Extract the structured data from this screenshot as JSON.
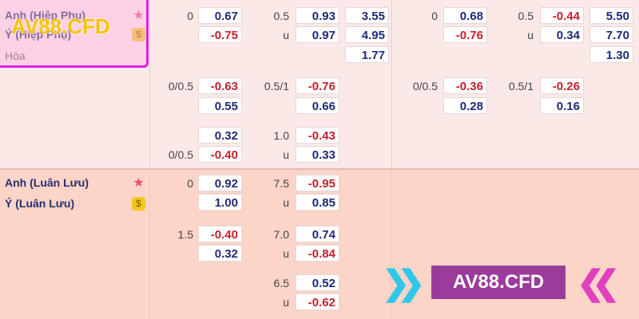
{
  "sections": [
    {
      "teams": [
        {
          "name": "Anh (Hiệp Phụ)",
          "icon": "★"
        },
        {
          "name": "Ý (Hiệp Phụ)",
          "icon": "$"
        },
        {
          "name": "Hòa",
          "icon": null
        }
      ],
      "rows": [
        [
          "0",
          "0.67",
          "0.5",
          "0.93",
          "3.55",
          "0",
          "0.68",
          "0.5",
          "-0.44",
          "5.50"
        ],
        [
          null,
          "-0.75",
          "u",
          "0.97",
          "4.95",
          null,
          "-0.76",
          "u",
          "0.34",
          "7.70"
        ],
        [
          null,
          null,
          null,
          null,
          "1.77",
          null,
          null,
          null,
          null,
          "1.30"
        ],
        [
          "0/0.5",
          "-0.63",
          "0.5/1",
          "-0.76",
          null,
          "0/0.5",
          "-0.36",
          "0.5/1",
          "-0.26",
          null
        ],
        [
          null,
          "0.55",
          null,
          "0.66",
          null,
          null,
          "0.28",
          null,
          "0.16",
          null
        ],
        [
          null,
          "0.32",
          "1.0",
          "-0.43",
          null,
          null,
          null,
          null,
          null,
          null
        ],
        [
          "0/0.5",
          "-0.40",
          "u",
          "0.33",
          null,
          null,
          null,
          null,
          null,
          null
        ]
      ]
    },
    {
      "teams": [
        {
          "name": "Anh (Luân Lưu)",
          "icon": "★"
        },
        {
          "name": "Ý (Luân Lưu)",
          "icon": "$"
        }
      ],
      "rows": [
        [
          "0",
          "0.92",
          "7.5",
          "-0.95",
          null,
          null,
          null,
          null,
          null,
          null
        ],
        [
          null,
          "1.00",
          "u",
          "0.85",
          null,
          null,
          null,
          null,
          null,
          null
        ],
        [
          "1.5",
          "-0.40",
          "7.0",
          "0.74",
          null,
          null,
          null,
          null,
          null,
          null
        ],
        [
          null,
          "0.32",
          "u",
          "-0.84",
          null,
          null,
          null,
          null,
          null,
          null
        ],
        [
          null,
          null,
          "6.5",
          "0.52",
          null,
          null,
          null,
          null,
          null,
          null
        ],
        [
          null,
          null,
          "u",
          "-0.62",
          null,
          null,
          null,
          null,
          null,
          null
        ]
      ]
    }
  ],
  "watermarks": [
    "AV88.CFD",
    "AV88.CFD"
  ]
}
